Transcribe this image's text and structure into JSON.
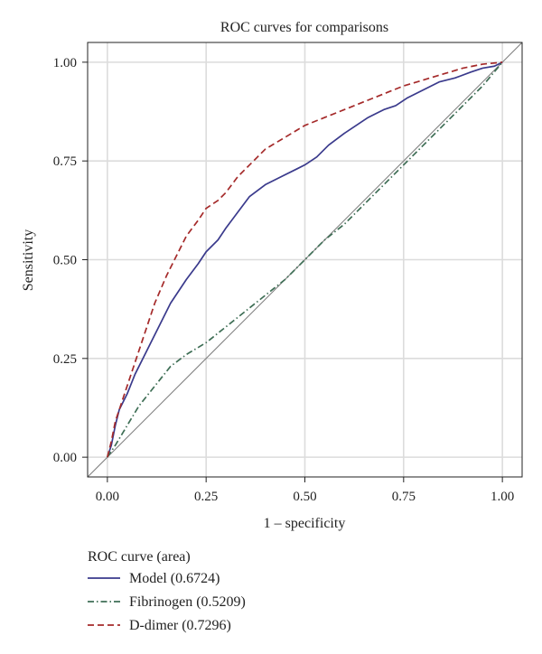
{
  "chart_data": {
    "type": "line",
    "title": "ROC curves for comparisons",
    "xlabel": "1 – specificity",
    "ylabel": "Sensitivity",
    "xlim": [
      -0.05,
      1.05
    ],
    "ylim": [
      -0.05,
      1.05
    ],
    "xticks": [
      0.0,
      0.25,
      0.5,
      0.75,
      1.0
    ],
    "xtick_labels": [
      "0.00",
      "0.25",
      "0.50",
      "0.75",
      "1.00"
    ],
    "yticks": [
      0.0,
      0.25,
      0.5,
      0.75,
      1.0
    ],
    "ytick_labels": [
      "0.00",
      "0.25",
      "0.50",
      "0.75",
      "1.00"
    ],
    "grid": true,
    "legend": {
      "title": "ROC curve (area)",
      "placement": "bottom-left"
    },
    "reference_line": {
      "x": [
        0,
        1
      ],
      "y": [
        0,
        1
      ],
      "color": "#808080"
    },
    "series": [
      {
        "name": "Model (0.6724)",
        "color": "#3a3a8c",
        "dash": "solid",
        "x": [
          0,
          0.01,
          0.02,
          0.03,
          0.05,
          0.07,
          0.1,
          0.13,
          0.16,
          0.2,
          0.23,
          0.25,
          0.28,
          0.3,
          0.33,
          0.36,
          0.4,
          0.44,
          0.48,
          0.5,
          0.53,
          0.56,
          0.6,
          0.63,
          0.66,
          0.7,
          0.73,
          0.76,
          0.8,
          0.84,
          0.88,
          0.92,
          0.95,
          0.98,
          1.0
        ],
        "y": [
          0,
          0.03,
          0.08,
          0.12,
          0.16,
          0.21,
          0.27,
          0.33,
          0.39,
          0.45,
          0.49,
          0.52,
          0.55,
          0.58,
          0.62,
          0.66,
          0.69,
          0.71,
          0.73,
          0.74,
          0.76,
          0.79,
          0.82,
          0.84,
          0.86,
          0.88,
          0.89,
          0.91,
          0.93,
          0.95,
          0.96,
          0.975,
          0.985,
          0.99,
          1.0
        ]
      },
      {
        "name": "Fibrinogen (0.5209)",
        "color": "#3e6e55",
        "dash": "dashdot",
        "x": [
          0,
          0.02,
          0.05,
          0.08,
          0.12,
          0.16,
          0.2,
          0.25,
          0.3,
          0.35,
          0.4,
          0.45,
          0.5,
          0.55,
          0.6,
          0.65,
          0.7,
          0.75,
          0.8,
          0.85,
          0.9,
          0.95,
          1.0
        ],
        "y": [
          0,
          0.03,
          0.08,
          0.13,
          0.18,
          0.23,
          0.26,
          0.29,
          0.33,
          0.37,
          0.41,
          0.45,
          0.5,
          0.55,
          0.59,
          0.64,
          0.69,
          0.74,
          0.79,
          0.84,
          0.89,
          0.94,
          1.0
        ]
      },
      {
        "name": "D-dimer (0.7296)",
        "color": "#a52a2a",
        "dash": "dashed",
        "x": [
          0,
          0.01,
          0.02,
          0.04,
          0.06,
          0.08,
          0.1,
          0.12,
          0.15,
          0.18,
          0.2,
          0.23,
          0.25,
          0.28,
          0.3,
          0.33,
          0.36,
          0.38,
          0.4,
          0.45,
          0.5,
          0.55,
          0.6,
          0.65,
          0.7,
          0.75,
          0.8,
          0.85,
          0.9,
          0.95,
          1.0
        ],
        "y": [
          0,
          0.04,
          0.09,
          0.15,
          0.21,
          0.27,
          0.33,
          0.39,
          0.46,
          0.52,
          0.56,
          0.6,
          0.63,
          0.65,
          0.67,
          0.71,
          0.74,
          0.76,
          0.78,
          0.81,
          0.84,
          0.86,
          0.88,
          0.9,
          0.92,
          0.94,
          0.955,
          0.97,
          0.985,
          0.995,
          1.0
        ]
      }
    ]
  }
}
